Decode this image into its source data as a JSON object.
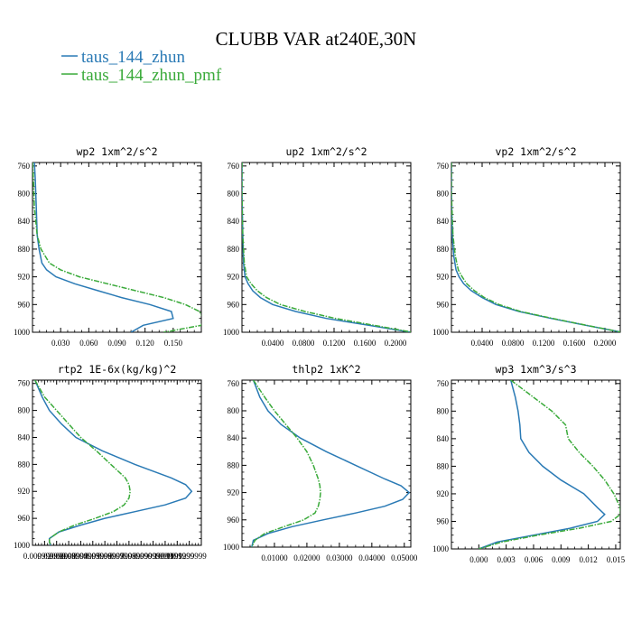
{
  "title": "CLUBB VAR at240E,30N",
  "legend": [
    {
      "label": "taus_144_zhun",
      "color": "#2a7ab5"
    },
    {
      "label": "taus_144_zhun_pmf",
      "color": "#3aaa3a"
    }
  ],
  "chart_data": [
    {
      "type": "line",
      "title": "wp2   1xm^2/s^2",
      "xlim": [
        0.0,
        0.18
      ],
      "ylim": [
        1000,
        755
      ],
      "y_reversed": true,
      "xticks": [
        0.03,
        0.06,
        0.09,
        0.12,
        0.15
      ],
      "xtick_labels": [
        "0.030",
        "0.060",
        "0.090",
        "0.120",
        "0.150"
      ],
      "yticks": [
        760,
        800,
        840,
        880,
        920,
        960,
        1000
      ],
      "series": [
        {
          "y": [
            755,
            780,
            820,
            860,
            880,
            900,
            910,
            920,
            930,
            940,
            950,
            960,
            970,
            980,
            990,
            1000
          ],
          "x": [
            0.002,
            0.003,
            0.004,
            0.005,
            0.007,
            0.01,
            0.015,
            0.025,
            0.045,
            0.07,
            0.095,
            0.125,
            0.148,
            0.15,
            0.118,
            0.105
          ]
        },
        {
          "y": [
            755,
            780,
            820,
            860,
            880,
            900,
            910,
            920,
            930,
            940,
            950,
            960,
            970,
            980,
            990,
            1000
          ],
          "x": [
            0.0,
            0.001,
            0.002,
            0.005,
            0.009,
            0.018,
            0.03,
            0.05,
            0.08,
            0.11,
            0.14,
            0.163,
            0.178,
            0.182,
            0.18,
            0.14
          ]
        }
      ]
    },
    {
      "type": "line",
      "title": "up2   1xm^2/s^2",
      "xlim": [
        0.0,
        0.22
      ],
      "ylim": [
        1000,
        755
      ],
      "y_reversed": true,
      "xticks": [
        0.04,
        0.08,
        0.12,
        0.16,
        0.2
      ],
      "xtick_labels": [
        "0.0400",
        "0.0800",
        "0.1200",
        "0.1600",
        "0.2000"
      ],
      "yticks": [
        760,
        800,
        840,
        880,
        920,
        960,
        1000
      ],
      "series": [
        {
          "y": [
            755,
            800,
            860,
            900,
            920,
            930,
            940,
            950,
            960,
            970,
            980,
            990,
            1000
          ],
          "x": [
            0.0,
            0.0,
            0.001,
            0.002,
            0.004,
            0.008,
            0.014,
            0.024,
            0.04,
            0.07,
            0.11,
            0.165,
            0.22
          ]
        },
        {
          "y": [
            755,
            800,
            860,
            900,
            920,
            930,
            940,
            950,
            960,
            970,
            980,
            990,
            1000
          ],
          "x": [
            0.0,
            0.0,
            0.001,
            0.003,
            0.006,
            0.012,
            0.02,
            0.032,
            0.05,
            0.082,
            0.122,
            0.172,
            0.222
          ]
        }
      ]
    },
    {
      "type": "line",
      "title": "vp2   1xm^2/s^2",
      "xlim": [
        0.0,
        0.22
      ],
      "ylim": [
        1000,
        755
      ],
      "y_reversed": true,
      "xticks": [
        0.04,
        0.08,
        0.12,
        0.16,
        0.2
      ],
      "xtick_labels": [
        "0.0400",
        "0.0800",
        "0.1200",
        "0.1600",
        "0.2000"
      ],
      "yticks": [
        760,
        800,
        840,
        880,
        920,
        960,
        1000
      ],
      "series": [
        {
          "y": [
            755,
            800,
            860,
            890,
            910,
            920,
            930,
            940,
            950,
            960,
            970,
            980,
            990,
            1000
          ],
          "x": [
            0.0,
            0.0,
            0.001,
            0.003,
            0.006,
            0.01,
            0.016,
            0.026,
            0.04,
            0.058,
            0.088,
            0.13,
            0.175,
            0.222
          ]
        },
        {
          "y": [
            755,
            800,
            860,
            890,
            910,
            920,
            930,
            940,
            950,
            960,
            970,
            980,
            990,
            1000
          ],
          "x": [
            0.0,
            0.0,
            0.002,
            0.005,
            0.009,
            0.014,
            0.02,
            0.03,
            0.043,
            0.062,
            0.09,
            0.132,
            0.176,
            0.222
          ]
        }
      ]
    },
    {
      "type": "line",
      "title": "rtp2   1E-6x(kg/kg)^2",
      "xlim": [
        0.0,
        0.14
      ],
      "ylim": [
        1000,
        755
      ],
      "y_reversed": true,
      "xticks": [
        0.01,
        0.02,
        0.03,
        0.04,
        0.05,
        0.06,
        0.07,
        0.08,
        0.09,
        0.1,
        0.11,
        0.12,
        0.13
      ],
      "xtick_labels": [
        "0.009999999",
        "0.02000000",
        "0.02999999",
        "0.03999999",
        "0.04999999",
        "0.05999999",
        "0.06999999",
        "0.07999999",
        "0.08999999",
        "0.09999999",
        "0.1099999",
        "0.1199999",
        "0.1299999"
      ],
      "xtick_label_note": "overlapping labels as drawn",
      "yticks": [
        760,
        800,
        840,
        880,
        920,
        960,
        1000
      ],
      "series": [
        {
          "y": [
            755,
            780,
            800,
            820,
            840,
            860,
            880,
            900,
            910,
            920,
            930,
            940,
            950,
            960,
            970,
            980,
            990,
            995,
            1000
          ],
          "x": [
            0.002,
            0.008,
            0.014,
            0.024,
            0.036,
            0.058,
            0.085,
            0.115,
            0.127,
            0.132,
            0.127,
            0.11,
            0.085,
            0.06,
            0.04,
            0.022,
            0.014,
            0.014,
            0.015
          ]
        },
        {
          "y": [
            755,
            780,
            800,
            820,
            840,
            860,
            880,
            900,
            910,
            920,
            930,
            940,
            950,
            960,
            970,
            980,
            990,
            995,
            1000
          ],
          "x": [
            0.002,
            0.01,
            0.02,
            0.03,
            0.04,
            0.053,
            0.065,
            0.077,
            0.08,
            0.081,
            0.08,
            0.076,
            0.067,
            0.052,
            0.035,
            0.022,
            0.014,
            0.014,
            0.015
          ]
        }
      ]
    },
    {
      "type": "line",
      "title": "thlp2   1xK^2",
      "xlim": [
        0.0,
        0.052
      ],
      "ylim": [
        1000,
        755
      ],
      "y_reversed": true,
      "xticks": [
        0.01,
        0.02,
        0.03,
        0.04,
        0.05
      ],
      "xtick_labels": [
        "0.01000",
        "0.02000",
        "0.03000",
        "0.04000",
        "0.05000"
      ],
      "yticks": [
        760,
        800,
        840,
        880,
        920,
        960,
        1000
      ],
      "series": [
        {
          "y": [
            755,
            780,
            800,
            820,
            840,
            860,
            880,
            900,
            910,
            920,
            930,
            940,
            950,
            960,
            970,
            980,
            990,
            1000
          ],
          "x": [
            0.0035,
            0.0055,
            0.008,
            0.012,
            0.018,
            0.026,
            0.035,
            0.044,
            0.049,
            0.0515,
            0.0495,
            0.044,
            0.035,
            0.025,
            0.0155,
            0.008,
            0.0035,
            0.003
          ]
        },
        {
          "y": [
            755,
            780,
            800,
            820,
            840,
            860,
            880,
            900,
            910,
            920,
            930,
            940,
            950,
            960,
            970,
            980,
            990,
            1000
          ],
          "x": [
            0.0035,
            0.007,
            0.01,
            0.0135,
            0.017,
            0.02,
            0.022,
            0.0235,
            0.024,
            0.0242,
            0.024,
            0.0235,
            0.0225,
            0.019,
            0.013,
            0.007,
            0.004,
            0.003
          ]
        }
      ]
    },
    {
      "type": "line",
      "title": "wp3   1xm^3/s^3",
      "xlim": [
        -0.003,
        0.0155
      ],
      "ylim": [
        1000,
        755
      ],
      "y_reversed": true,
      "xticks": [
        0.0,
        0.003,
        0.006,
        0.009,
        0.012,
        0.015
      ],
      "xtick_labels": [
        "0.000",
        "0.003",
        "0.006",
        "0.009",
        "0.012",
        "0.015"
      ],
      "yticks": [
        760,
        800,
        840,
        880,
        920,
        960,
        1000
      ],
      "series": [
        {
          "y": [
            755,
            780,
            800,
            820,
            840,
            860,
            880,
            900,
            920,
            940,
            950,
            960,
            970,
            980,
            990,
            1000
          ],
          "x": [
            0.0035,
            0.004,
            0.0043,
            0.0045,
            0.0046,
            0.0055,
            0.007,
            0.009,
            0.0115,
            0.013,
            0.0138,
            0.013,
            0.01,
            0.006,
            0.002,
            0.0
          ]
        },
        {
          "y": [
            755,
            780,
            800,
            820,
            840,
            860,
            880,
            900,
            920,
            940,
            950,
            960,
            970,
            980,
            990,
            1000
          ],
          "x": [
            0.0035,
            0.006,
            0.008,
            0.0095,
            0.0098,
            0.011,
            0.0125,
            0.0138,
            0.0148,
            0.0155,
            0.0155,
            0.0145,
            0.011,
            0.0065,
            0.0025,
            0.0
          ]
        }
      ]
    }
  ]
}
